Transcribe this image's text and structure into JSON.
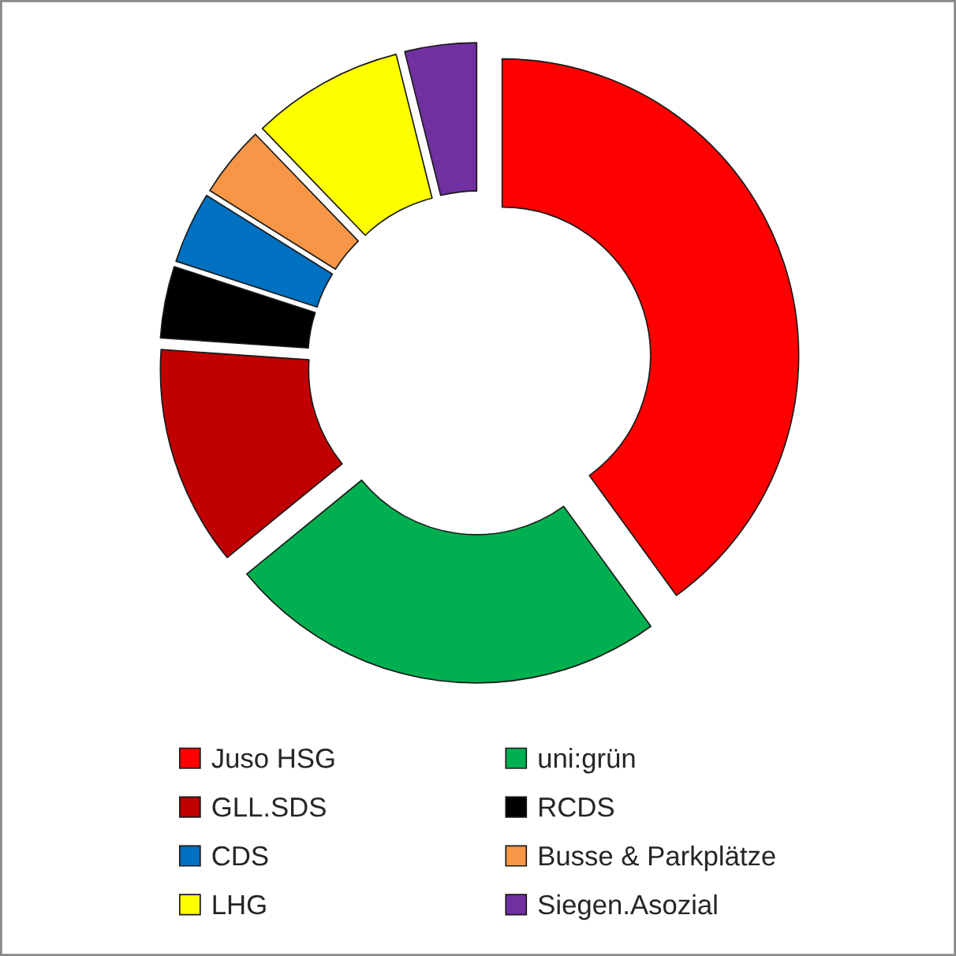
{
  "chart_data": {
    "type": "donut",
    "categories": [
      "Juso HSG",
      "uni:grün",
      "GLL.SDS",
      "RCDS",
      "CDS",
      "Busse & Parkplätze",
      "LHG",
      "Siegen.Asozial"
    ],
    "values": [
      40.0,
      24.1,
      12.0,
      3.9,
      3.9,
      3.9,
      8.3,
      3.9
    ],
    "colors": [
      "#ff0000",
      "#00b050",
      "#c00000",
      "#000000",
      "#0070c0",
      "#f79646",
      "#ffff00",
      "#7030a0"
    ],
    "legend": "bottom"
  }
}
